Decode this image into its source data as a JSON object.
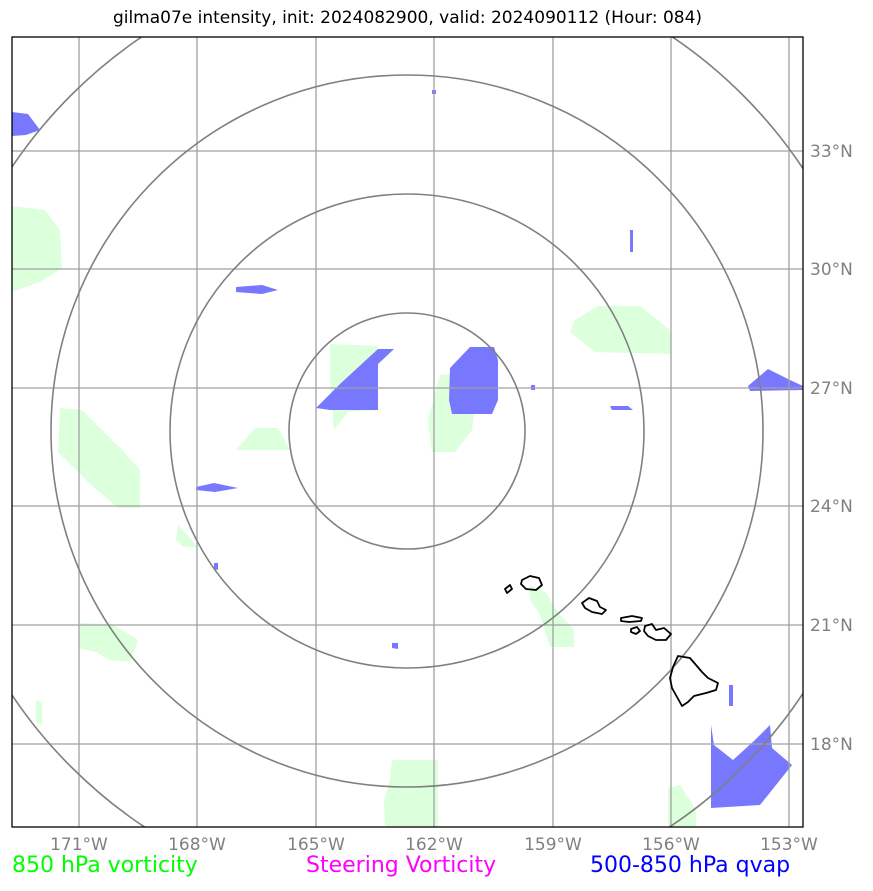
{
  "title": "gilma07e intensity, init: 2024082900, valid: 2024090112 (Hour: 084)",
  "map": {
    "lon_ticks": [
      "171°W",
      "168°W",
      "165°W",
      "162°W",
      "159°W",
      "156°W",
      "153°W"
    ],
    "lat_ticks": [
      "33°N",
      "30°N",
      "27°N",
      "24°N",
      "21°N",
      "18°N"
    ]
  },
  "legend": [
    {
      "label": "850 hPa vorticity",
      "color": "#00ff00"
    },
    {
      "label": "Steering Vorticity",
      "color": "#ff00ff"
    },
    {
      "label": "500-850 hPa qvap",
      "color": "#0000ff"
    }
  ],
  "colors": {
    "vorticity_fill": "#dcffdc",
    "qvap_fill": "#7878ff",
    "grid": "#a0a0a0",
    "rings": "#808080",
    "coastline": "#000000"
  }
}
